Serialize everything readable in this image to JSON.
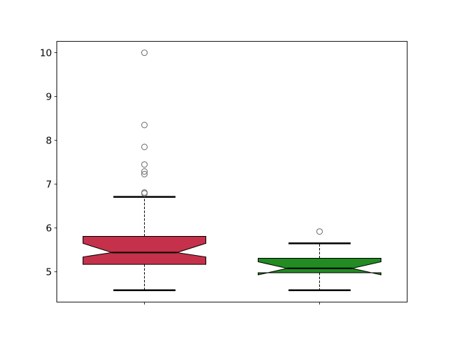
{
  "chart_data": {
    "type": "boxplot",
    "notched": true,
    "title": "",
    "xlabel": "",
    "ylabel": "",
    "xlim": [
      0.5,
      2.5
    ],
    "ylim": [
      4.31,
      10.26
    ],
    "yticks": [
      "5",
      "6",
      "7",
      "8",
      "9",
      "10"
    ],
    "xticks": [
      1,
      2
    ],
    "grid": false,
    "boxes": [
      {
        "position": 1,
        "color": "#c5314a",
        "whisker_low": 4.58,
        "q1": 5.17,
        "notch_low": 5.34,
        "median": 5.44,
        "notch_high": 5.65,
        "q3": 5.81,
        "whisker_high": 6.71,
        "outliers": [
          6.79,
          6.81,
          7.23,
          7.29,
          7.45,
          7.85,
          8.35,
          10.0
        ]
      },
      {
        "position": 2,
        "color": "#228b22",
        "whisker_low": 4.58,
        "q1": 4.98,
        "notch_low": 4.93,
        "median": 5.08,
        "notch_high": 5.23,
        "q3": 5.31,
        "whisker_high": 5.65,
        "outliers": [
          5.92
        ]
      }
    ]
  }
}
